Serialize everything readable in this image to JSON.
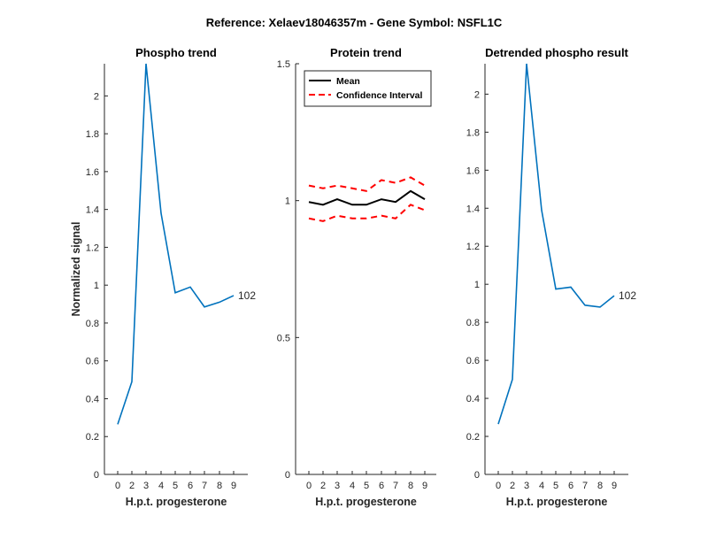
{
  "figure": {
    "suptitle": "Reference:  Xelaev18046357m - Gene Symbol:  NSFL1C"
  },
  "chart_data": [
    {
      "type": "line",
      "title": "Phospho trend",
      "xlabel": "H.p.t. progesterone",
      "ylabel": "Normalized signal",
      "x_ticks": [
        "0",
        "2",
        "3",
        "4",
        "5",
        "6",
        "7",
        "8",
        "9"
      ],
      "ylim": [
        0,
        2.17
      ],
      "y_ticks": [
        0,
        0.2,
        0.4,
        0.6,
        0.8,
        1,
        1.2,
        1.4,
        1.6,
        1.8,
        2
      ],
      "y_tick_labels": [
        "0",
        "0.2",
        "0.4",
        "0.6",
        "0.8",
        "1",
        "1.2",
        "1.4",
        "1.6",
        "1.8",
        "2"
      ],
      "series": [
        {
          "color": "#0072BD",
          "values": [
            0.265,
            0.49,
            2.17,
            1.38,
            0.96,
            0.99,
            0.885,
            0.91,
            0.945
          ]
        }
      ],
      "end_label": "102"
    },
    {
      "type": "line",
      "title": "Protein trend",
      "xlabel": "H.p.t. progesterone",
      "ylabel": "",
      "x_ticks": [
        "0",
        "2",
        "3",
        "4",
        "5",
        "6",
        "7",
        "8",
        "9"
      ],
      "ylim": [
        0,
        1.5
      ],
      "y_ticks": [
        0,
        0.5,
        1,
        1.5
      ],
      "y_tick_labels": [
        "0",
        "0.5",
        "1",
        "1.5"
      ],
      "series": [
        {
          "name": "Mean",
          "color": "#000000",
          "dash": "solid",
          "values": [
            0.995,
            0.985,
            1.005,
            0.985,
            0.985,
            1.005,
            0.995,
            1.035,
            1.005
          ]
        },
        {
          "name": "Confidence Interval",
          "color": "#FF0000",
          "dash": "dashed",
          "values": [
            1.055,
            1.045,
            1.055,
            1.045,
            1.035,
            1.075,
            1.065,
            1.085,
            1.055
          ]
        },
        {
          "color": "#FF0000",
          "dash": "dashed",
          "values": [
            0.935,
            0.925,
            0.945,
            0.935,
            0.935,
            0.945,
            0.935,
            0.985,
            0.965
          ]
        }
      ],
      "legend": {
        "placement": "top-left",
        "entries": [
          "Mean",
          "Confidence Interval"
        ]
      }
    },
    {
      "type": "line",
      "title": "Detrended phospho result",
      "xlabel": "H.p.t. progesterone",
      "ylabel": "",
      "x_ticks": [
        "0",
        "2",
        "3",
        "4",
        "5",
        "6",
        "7",
        "8",
        "9"
      ],
      "ylim": [
        0,
        2.16
      ],
      "y_ticks": [
        0,
        0.2,
        0.4,
        0.6,
        0.8,
        1,
        1.2,
        1.4,
        1.6,
        1.8,
        2
      ],
      "y_tick_labels": [
        "0",
        "0.2",
        "0.4",
        "0.6",
        "0.8",
        "1",
        "1.2",
        "1.4",
        "1.6",
        "1.8",
        "2"
      ],
      "series": [
        {
          "color": "#0072BD",
          "values": [
            0.265,
            0.5,
            2.16,
            1.39,
            0.975,
            0.985,
            0.89,
            0.88,
            0.94
          ]
        }
      ],
      "end_label": "102"
    }
  ]
}
